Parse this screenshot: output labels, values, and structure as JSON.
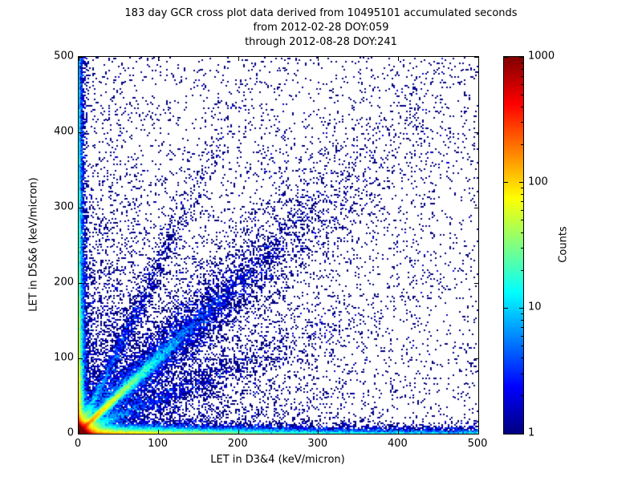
{
  "chart_data": {
    "type": "scatter",
    "title": "183 day GCR cross plot data derived from 10495101 accumulated seconds",
    "subtitle_from": "from 2012-02-28 DOY:059",
    "subtitle_through": "through 2012-08-28 DOY:241",
    "xlabel": "LET in D3&4 (keV/micron)",
    "ylabel": "LET in D5&6 (keV/micron)",
    "xlim": [
      0,
      500
    ],
    "ylim": [
      0,
      500
    ],
    "xticks": [
      0,
      100,
      200,
      300,
      400,
      500
    ],
    "yticks": [
      0,
      100,
      200,
      300,
      400,
      500
    ],
    "grid": false,
    "colorbar": {
      "label": "Counts",
      "scale": "log",
      "min": 1,
      "max": 1000,
      "ticks": [
        1,
        10,
        100,
        1000
      ],
      "colormap": "jet",
      "gradient_stops_top_to_bottom": [
        "#800000",
        "#ff0000",
        "#ff8000",
        "#ffff00",
        "#80ff80",
        "#00ffff",
        "#0080ff",
        "#0000ff",
        "#000080"
      ]
    },
    "density_model": {
      "comment": "procedural 2D-histogram model of the point density seen in the screenshot",
      "seed": 20120228,
      "bins": 250,
      "components": [
        {
          "name": "origin-core",
          "type": "exp2d",
          "n": 70000,
          "xscale": 3.5,
          "yscale": 3.5
        },
        {
          "name": "origin-halo",
          "type": "exp2d",
          "n": 12000,
          "xscale": 10,
          "yscale": 10
        },
        {
          "name": "diagonal-tight",
          "type": "diag",
          "n": 15000,
          "tscale": 45,
          "spread0": 1.2,
          "spreadk": 0.03
        },
        {
          "name": "diagonal-wide",
          "type": "diag",
          "n": 8000,
          "tscale": 130,
          "spread0": 5,
          "spreadk": 0.1
        },
        {
          "name": "ray-upper",
          "type": "ray",
          "n": 2500,
          "tscale": 50,
          "slope": 2.2,
          "spread0": 1.5,
          "spreadk": 0.05
        },
        {
          "name": "ray-lower",
          "type": "ray",
          "n": 2500,
          "tscale": 110,
          "slope": 0.45,
          "spread0": 1.5,
          "spreadk": 0.05
        },
        {
          "name": "bottom-band",
          "type": "band-x",
          "n": 15000,
          "lscale": 100,
          "wscale": 3
        },
        {
          "name": "bottom-band-far",
          "type": "band-x-uniform",
          "n": 4000,
          "wscale": 3
        },
        {
          "name": "left-band",
          "type": "band-y",
          "n": 15000,
          "lscale": 120,
          "wscale": 2.5
        },
        {
          "name": "left-band-far",
          "type": "band-y-uniform",
          "n": 4000,
          "wscale": 2.5
        },
        {
          "name": "background-exp",
          "type": "exp2d",
          "n": 6000,
          "xscale": 120,
          "yscale": 120
        },
        {
          "name": "background-uniform",
          "type": "uniform",
          "n": 3000
        }
      ]
    }
  }
}
